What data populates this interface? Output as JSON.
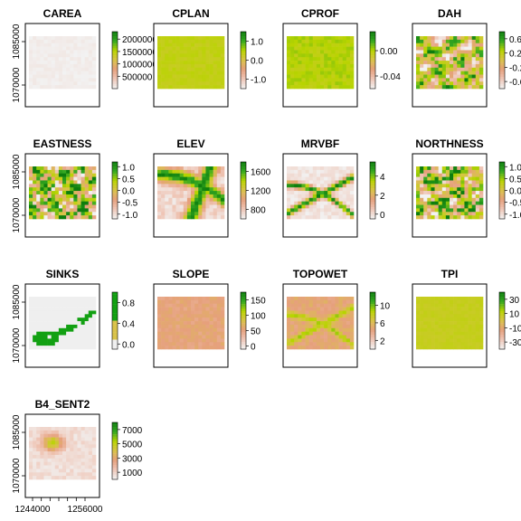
{
  "colors": {
    "terrain_ramp": [
      "#f2f2f2",
      "#efc7b8",
      "#e6a07c",
      "#d9c34a",
      "#b8d400",
      "#35a822",
      "#0d7d0d"
    ]
  },
  "chart_data": {
    "type": "heatmap",
    "grid": {
      "rows": 4,
      "cols": 4
    },
    "shared_axes": {
      "x_ticks": [
        1244000,
        1256000
      ],
      "x_tick_labels": [
        "1244000",
        "1256000"
      ],
      "y_ticks": [
        1085000,
        1070000
      ],
      "y_tick_labels": [
        "1085000",
        "1070000"
      ]
    },
    "panels": [
      {
        "title": "CAREA",
        "legend_ticks": [
          "2000000",
          "1500000",
          "1000000",
          "500000"
        ],
        "legend_range": [
          0,
          2300000
        ],
        "legend_values": [
          2000000,
          1500000,
          1000000,
          500000
        ],
        "pattern": "uniform",
        "base_level": 0.02,
        "noise": 0.02
      },
      {
        "title": "CPLAN",
        "legend_ticks": [
          "1.0",
          "0.0",
          "-1.0"
        ],
        "legend_range": [
          -1.5,
          1.5
        ],
        "legend_values": [
          1.0,
          0.0,
          -1.0
        ],
        "pattern": "uniform",
        "base_level": 0.62,
        "noise": 0.03
      },
      {
        "title": "CPROF",
        "legend_ticks": [
          "0.00",
          "-0.04"
        ],
        "legend_range": [
          -0.06,
          0.03
        ],
        "legend_values": [
          0.0,
          -0.04
        ],
        "pattern": "uniform",
        "base_level": 0.66,
        "noise": 0.05
      },
      {
        "title": "DAH",
        "legend_ticks": [
          "0.6",
          "0.2",
          "-0.2",
          "-0.6"
        ],
        "legend_range": [
          -0.8,
          0.8
        ],
        "legend_values": [
          0.6,
          0.2,
          -0.2,
          -0.6
        ],
        "pattern": "patchy",
        "base_level": 0.5,
        "noise": 0.3
      },
      {
        "title": "EASTNESS",
        "legend_ticks": [
          "1.0",
          "0.5",
          "0.0",
          "-0.5",
          "-1.0"
        ],
        "legend_range": [
          -1.2,
          1.2
        ],
        "legend_values": [
          1.0,
          0.5,
          0.0,
          -0.5,
          -1.0
        ],
        "pattern": "patchy",
        "base_level": 0.55,
        "noise": 0.42
      },
      {
        "title": "ELEV",
        "legend_ticks": [
          "1600",
          "1200",
          "800"
        ],
        "legend_range": [
          600,
          1800
        ],
        "legend_values": [
          1600,
          1200,
          800
        ],
        "pattern": "ridge",
        "base_level": 0.3,
        "noise": 0.08
      },
      {
        "title": "MRVBF",
        "legend_ticks": [
          "4",
          "2",
          "0"
        ],
        "legend_range": [
          -0.5,
          5.5
        ],
        "legend_values": [
          4,
          2,
          0
        ],
        "pattern": "valley",
        "base_level": 0.05,
        "noise": 0.05
      },
      {
        "title": "NORTHNESS",
        "legend_ticks": [
          "1.0",
          "0.5",
          "0.0",
          "-0.5",
          "-1.0"
        ],
        "legend_range": [
          -1.2,
          1.2
        ],
        "legend_values": [
          1.0,
          0.5,
          0.0,
          -0.5,
          -1.0
        ],
        "pattern": "patchy",
        "base_level": 0.55,
        "noise": 0.42
      },
      {
        "title": "SINKS",
        "legend_ticks": [
          "0.8",
          "0.4",
          "0.0"
        ],
        "legend_range": [
          -0.1,
          1.0
        ],
        "legend_values": [
          0.8,
          0.4,
          0.0
        ],
        "pattern": "sinks",
        "base_level": 0.0,
        "noise": 0.0
      },
      {
        "title": "SLOPE",
        "legend_ticks": [
          "150",
          "100",
          "50",
          "0"
        ],
        "legend_range": [
          -10,
          175
        ],
        "legend_values": [
          150,
          100,
          50,
          0
        ],
        "pattern": "uniform",
        "base_level": 0.34,
        "noise": 0.05
      },
      {
        "title": "TOPOWET",
        "legend_ticks": [
          "10",
          "6",
          "2"
        ],
        "legend_range": [
          0,
          13
        ],
        "legend_values": [
          10,
          6,
          2
        ],
        "pattern": "valley_soft",
        "base_level": 0.36,
        "noise": 0.06
      },
      {
        "title": "TPI",
        "legend_ticks": [
          "30",
          "10",
          "-10",
          "-30"
        ],
        "legend_range": [
          -40,
          40
        ],
        "legend_values": [
          30,
          10,
          -10,
          -30
        ],
        "pattern": "uniform",
        "base_level": 0.6,
        "noise": 0.02
      },
      {
        "title": "B4_SENT2",
        "legend_ticks": [
          "7000",
          "5000",
          "3000",
          "1000"
        ],
        "legend_range": [
          0,
          8000
        ],
        "legend_values": [
          7000,
          5000,
          3000,
          1000
        ],
        "pattern": "bright_spot",
        "base_level": 0.08,
        "noise": 0.05
      }
    ]
  }
}
